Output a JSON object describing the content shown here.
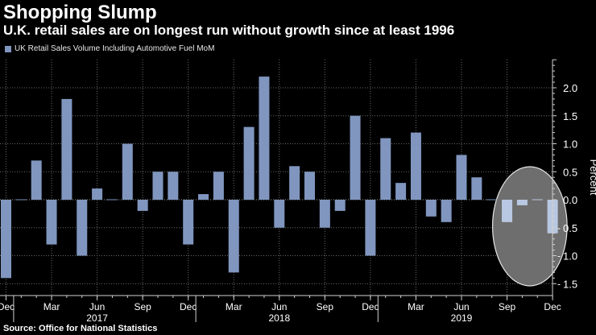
{
  "title": "Shopping Slump",
  "subtitle": "U.K. retail sales are on longest run without growth since at least 1996",
  "source": "Source: Office for National Statistics",
  "colors": {
    "background": "#000000",
    "bar": "#8096bf",
    "bar_highlight": "#b9c8e2",
    "highlight_ellipse": "#6e6e6e",
    "grid": "#6a6a6a",
    "axis": "#d0d0d0",
    "text": "#ffffff"
  },
  "chart_data": {
    "type": "bar",
    "title": "Shopping Slump",
    "xlabel": "",
    "ylabel": "Percent",
    "ylim": [
      -1.5,
      2.5
    ],
    "yticks": [
      -1.5,
      -1.0,
      -0.5,
      0.0,
      0.5,
      1.0,
      1.5,
      2.0
    ],
    "ytick_labels": [
      "1.5",
      "1.0",
      "0.5",
      "0.0",
      "0.5",
      "1.0",
      "1.5",
      "2.0"
    ],
    "ytick_signs": [
      "-",
      "-",
      "-",
      "",
      "",
      "",
      "",
      ""
    ],
    "legend": "UK Retail Sales Volume Including Automotive Fuel MoM",
    "categories": [
      "Dec 2016",
      "Jan 2017",
      "Feb 2017",
      "Mar 2017",
      "Apr 2017",
      "May 2017",
      "Jun 2017",
      "Jul 2017",
      "Aug 2017",
      "Sep 2017",
      "Oct 2017",
      "Nov 2017",
      "Dec 2017",
      "Jan 2018",
      "Feb 2018",
      "Mar 2018",
      "Apr 2018",
      "May 2018",
      "Jun 2018",
      "Jul 2018",
      "Aug 2018",
      "Sep 2018",
      "Oct 2018",
      "Nov 2018",
      "Dec 2018",
      "Jan 2019",
      "Feb 2019",
      "Mar 2019",
      "Apr 2019",
      "May 2019",
      "Jun 2019",
      "Jul 2019",
      "Aug 2019",
      "Sep 2019",
      "Oct 2019",
      "Nov 2019",
      "Dec 2019"
    ],
    "series": [
      {
        "name": "UK Retail Sales Volume Including Automotive Fuel MoM",
        "values": [
          -1.4,
          0.0,
          0.7,
          -0.8,
          1.8,
          -1.0,
          0.2,
          0.0,
          1.0,
          -0.2,
          0.5,
          0.5,
          -0.8,
          0.1,
          0.5,
          -1.3,
          1.3,
          2.2,
          -0.5,
          0.6,
          0.5,
          -0.5,
          -0.2,
          1.5,
          -1.0,
          1.1,
          0.3,
          1.2,
          -0.3,
          -0.4,
          0.8,
          0.4,
          0.0,
          -0.4,
          -0.1,
          0.0,
          -0.6
        ]
      }
    ],
    "highlight_months": [
      "Sep 2019",
      "Oct 2019",
      "Nov 2019",
      "Dec 2019"
    ],
    "x_tick_labels": [
      "Dec",
      "Mar",
      "Jun",
      "Sep",
      "Dec",
      "Mar",
      "Jun",
      "Sep",
      "Dec",
      "Mar",
      "Jun",
      "Sep",
      "Dec"
    ],
    "x_tick_months": [
      "Dec 2016",
      "Mar 2017",
      "Jun 2017",
      "Sep 2017",
      "Dec 2017",
      "Mar 2018",
      "Jun 2018",
      "Sep 2018",
      "Dec 2018",
      "Mar 2019",
      "Jun 2019",
      "Sep 2019",
      "Dec 2019"
    ],
    "year_labels": [
      "2017",
      "2018",
      "2019"
    ],
    "year_label_months": [
      "Jun 2017",
      "Jun 2018",
      "Jun 2019"
    ]
  }
}
